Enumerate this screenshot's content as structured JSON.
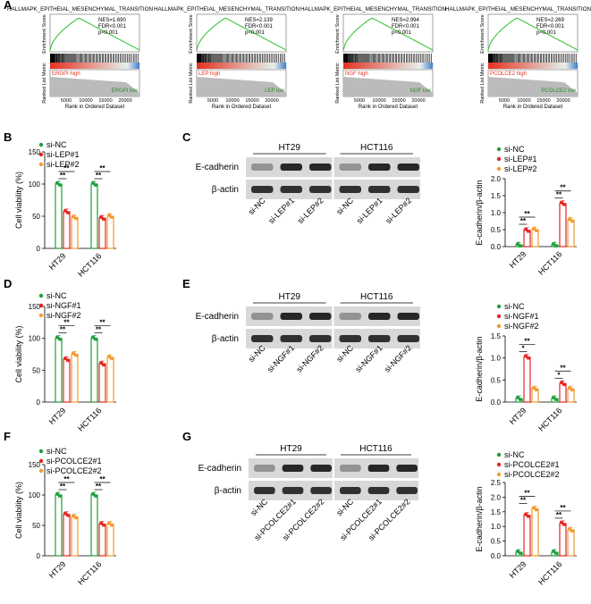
{
  "panel_letters": [
    "A",
    "B",
    "C",
    "D",
    "E",
    "F",
    "G"
  ],
  "colors": {
    "si_nc": "#1f9e3a",
    "si_1": "#e52421",
    "si_2": "#f39a2d",
    "es_curve": "#2ac02a",
    "high": "#e53222",
    "low": "#2a8a2a",
    "blue": "#2f78c8"
  },
  "gsea": [
    {
      "title": "HALLMAPK_EPITHEIAL_MESENCHYMAL_TRANSITION",
      "nes": "NES=1.690",
      "fdr": "FDR<0.001",
      "p": "p<0.001",
      "high_label": "ERGPI high",
      "low_label": "ERGPI low",
      "ylabel_top": "Enrichment Score",
      "ylabel_bottom": "Ranked List Metric",
      "xlabel": "Rank in Ordered Dataset",
      "xticks": [
        "5000",
        "10000",
        "15000",
        "20000"
      ]
    },
    {
      "title": "HALLMAPK_EPITHEIAL_MESENCHYMAL_TRANSITION",
      "nes": "NES=2.139",
      "fdr": "FDR<0.001",
      "p": "p<0.001",
      "high_label": "LEP high",
      "low_label": "LEP low",
      "ylabel_top": "Enrichment Score",
      "ylabel_bottom": "Ranked List Metric",
      "xlabel": "Rank in Ordered Dataset",
      "xticks": [
        "5000",
        "10000",
        "15000",
        "20000"
      ]
    },
    {
      "title": "HALLMAPK_EPITHEIAL_MESENCHYMAL_TRANSITION",
      "nes": "NES=2.994",
      "fdr": "FDR<0.001",
      "p": "p<0.001",
      "high_label": "NGF high",
      "low_label": "NGF low",
      "ylabel_top": "Enrichment Score",
      "ylabel_bottom": "Ranked List Metric",
      "xlabel": "Rank in Ordered Dataset",
      "xticks": [
        "5000",
        "10000",
        "15000",
        "20000"
      ]
    },
    {
      "title": "HALLMAPK_EPITHEIAL_MESENCHYMAL_TRANSITION",
      "nes": "NES=2.269",
      "fdr": "FDR<0.001",
      "p": "p<0.001",
      "high_label": "PCOLCE2 high",
      "low_label": "PCOLCE2 low",
      "ylabel_top": "Enrichment Score",
      "ylabel_bottom": "Ranked List Metric",
      "xlabel": "Rank in Ordered Dataset",
      "xticks": [
        "5000",
        "10000",
        "15000",
        "20000"
      ]
    }
  ],
  "rows": [
    {
      "legend": [
        "si-NC",
        "si-LEP#1",
        "si-LEP#2"
      ],
      "blot_cells": [
        "HT29",
        "HCT116"
      ],
      "blot_proteins": [
        "E-cadherin",
        "β-actin"
      ],
      "blot_lanes": [
        "si-NC",
        "si-LEP#1",
        "si-LEP#2",
        "si-NC",
        "si-LEP#1",
        "si-LEP#2"
      ]
    },
    {
      "legend": [
        "si-NC",
        "si-NGF#1",
        "si-NGF#2"
      ],
      "blot_cells": [
        "HT29",
        "HCT116"
      ],
      "blot_proteins": [
        "E-cadherin",
        "β-actin"
      ],
      "blot_lanes": [
        "si-NC",
        "si-NGF#1",
        "si-NGF#2",
        "si-NC",
        "si-NGF#1",
        "si-NGF#2"
      ]
    },
    {
      "legend": [
        "si-NC",
        "si-PCOLCE2#1",
        "si-PCOLCE2#2"
      ],
      "blot_cells": [
        "HT29",
        "HCT116"
      ],
      "blot_proteins": [
        "E-cadherin",
        "β-actin"
      ],
      "blot_lanes": [
        "si-NC",
        "si-PCOLCE2#1",
        "si-PCOLCE2#2",
        "si-NC",
        "si-PCOLCE2#1",
        "si-PCOLCE2#2"
      ]
    }
  ],
  "chart_data": [
    {
      "panel": "B",
      "type": "bar",
      "ylabel": "Cell viability (%)",
      "ylim": [
        0,
        150
      ],
      "yticks": [
        "0",
        "50",
        "100",
        "150"
      ],
      "categories": [
        "HT29",
        "HCT116"
      ],
      "series": [
        {
          "name": "si-NC",
          "values": [
            100,
            100
          ]
        },
        {
          "name": "si-LEP#1",
          "values": [
            57,
            47
          ]
        },
        {
          "name": "si-LEP#2",
          "values": [
            48,
            50
          ]
        }
      ],
      "sig": [
        "**",
        "**",
        "**",
        "**"
      ]
    },
    {
      "panel": "C",
      "type": "bar",
      "ylabel": "E-cadherin/β-actin",
      "ylim": [
        0,
        2.0
      ],
      "yticks": [
        "0.0",
        "0.5",
        "1.0",
        "1.5",
        "2.0"
      ],
      "categories": [
        "HT29",
        "HCT116"
      ],
      "series": [
        {
          "name": "si-NC",
          "values": [
            0.05,
            0.05
          ]
        },
        {
          "name": "si-LEP#1",
          "values": [
            0.48,
            1.27
          ]
        },
        {
          "name": "si-LEP#2",
          "values": [
            0.5,
            0.78
          ]
        }
      ],
      "sig": [
        "**",
        "**",
        "**",
        "**"
      ]
    },
    {
      "panel": "D",
      "type": "bar",
      "ylabel": "Cell viability (%)",
      "ylim": [
        0,
        150
      ],
      "yticks": [
        "0",
        "50",
        "100",
        "150"
      ],
      "categories": [
        "HT29",
        "HCT116"
      ],
      "series": [
        {
          "name": "si-NC",
          "values": [
            100,
            100
          ]
        },
        {
          "name": "si-NGF#1",
          "values": [
            67,
            60
          ]
        },
        {
          "name": "si-NGF#2",
          "values": [
            75,
            70
          ]
        }
      ],
      "sig": [
        "**",
        "**",
        "**",
        "**"
      ]
    },
    {
      "panel": "E",
      "type": "bar",
      "ylabel": "E-cadherin/β-actin",
      "ylim": [
        0,
        1.5
      ],
      "yticks": [
        "0.0",
        "0.5",
        "1.0",
        "1.5"
      ],
      "categories": [
        "HT29",
        "HCT116"
      ],
      "series": [
        {
          "name": "si-NC",
          "values": [
            0.08,
            0.08
          ]
        },
        {
          "name": "si-NGF#1",
          "values": [
            1.02,
            0.42
          ]
        },
        {
          "name": "si-NGF#2",
          "values": [
            0.3,
            0.3
          ]
        }
      ],
      "sig": [
        "**",
        "*",
        "**",
        "*"
      ]
    },
    {
      "panel": "F",
      "type": "bar",
      "ylabel": "Cell viability (%)",
      "ylim": [
        0,
        150
      ],
      "yticks": [
        "0",
        "50",
        "100",
        "150"
      ],
      "categories": [
        "HT29",
        "HCT116"
      ],
      "series": [
        {
          "name": "si-NC",
          "values": [
            100,
            100
          ]
        },
        {
          "name": "si-PCOLCE2#1",
          "values": [
            68,
            52
          ]
        },
        {
          "name": "si-PCOLCE2#2",
          "values": [
            64,
            52
          ]
        }
      ],
      "sig": [
        "**",
        "**",
        "**",
        "**"
      ]
    },
    {
      "panel": "G",
      "type": "bar",
      "ylabel": "E-cadherin/β-actin",
      "ylim": [
        0,
        2.5
      ],
      "yticks": [
        "0.0",
        "0.5",
        "1.0",
        "1.5",
        "2.0",
        "2.5"
      ],
      "categories": [
        "HT29",
        "HCT116"
      ],
      "series": [
        {
          "name": "si-NC",
          "values": [
            0.12,
            0.12
          ]
        },
        {
          "name": "si-PCOLCE2#1",
          "values": [
            1.38,
            1.1
          ]
        },
        {
          "name": "si-PCOLCE2#2",
          "values": [
            1.6,
            0.88
          ]
        }
      ],
      "sig": [
        "**",
        "**",
        "**",
        "**"
      ]
    }
  ]
}
